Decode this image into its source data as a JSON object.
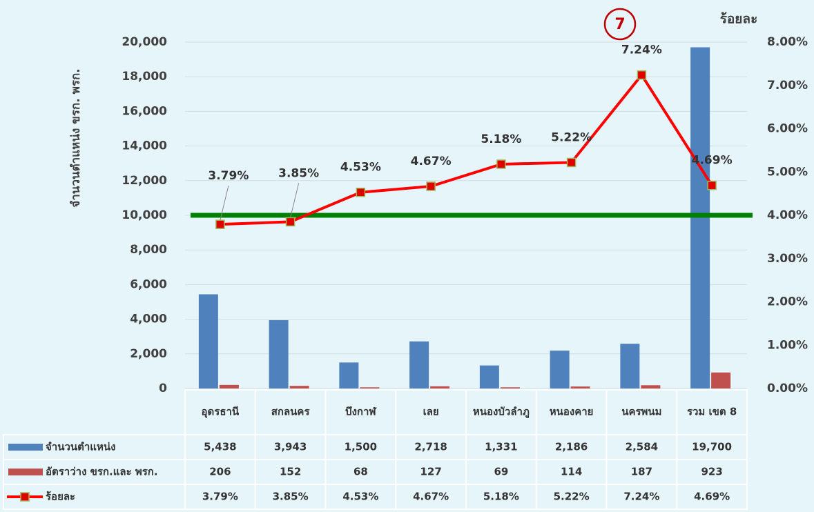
{
  "chart_data": {
    "type": "bar",
    "annotation": "7",
    "y_label": "จำนวนตำแหน่ง ขรก. พรก.",
    "y2_label": "ร้อยละ",
    "categories": [
      "อุดรธานี",
      "สกลนคร",
      "บึงกาฬ",
      "เลย",
      "หนองบัวลำภู",
      "หนองคาย",
      "นครพนม",
      "รวม เขต 8"
    ],
    "series": [
      {
        "name": "จำนวนตำแหน่ง",
        "type": "bar",
        "color": "#4f81bd",
        "values": [
          5438,
          3943,
          1500,
          2718,
          1331,
          2186,
          2584,
          19700
        ],
        "value_labels": [
          "5,438",
          "3,943",
          "1,500",
          "2,718",
          "1,331",
          "2,186",
          "2,584",
          "19,700"
        ]
      },
      {
        "name": "อัตราว่าง ขรก.และ พรก.",
        "type": "bar",
        "color": "#c0504d",
        "values": [
          206,
          152,
          68,
          127,
          69,
          114,
          187,
          923
        ],
        "value_labels": [
          "206",
          "152",
          "68",
          "127",
          "69",
          "114",
          "187",
          "923"
        ]
      },
      {
        "name": "ร้อยละ",
        "type": "line",
        "axis": "y2",
        "color": "#ff0000",
        "values": [
          3.79,
          3.85,
          4.53,
          4.67,
          5.18,
          5.22,
          7.24,
          4.69
        ],
        "value_labels": [
          "3.79%",
          "3.85%",
          "4.53%",
          "4.67%",
          "5.18%",
          "5.22%",
          "7.24%",
          "4.69%"
        ]
      }
    ],
    "reference_line": {
      "value": 4,
      "axis": "y2",
      "color": "#008000"
    },
    "ylim": [
      0,
      20000
    ],
    "yticks": [
      0,
      {
        "value": 2000,
        "label": "2,000"
      },
      {
        "value": 4000,
        "label": "4,000"
      },
      {
        "value": 6000,
        "label": "6,000"
      },
      {
        "value": 8000,
        "label": "8,000"
      },
      {
        "value": 10000,
        "label": "10,000"
      },
      {
        "value": 12000,
        "label": "12,000"
      },
      {
        "value": 14000,
        "label": "14,000"
      },
      {
        "value": 16000,
        "label": "16,000"
      },
      {
        "value": 18000,
        "label": "18,000"
      },
      {
        "value": 20000,
        "label": "20,000"
      }
    ],
    "y2lim": [
      0,
      8
    ],
    "y2ticks": [
      {
        "value": 0,
        "label": "0.00%"
      },
      {
        "value": 1,
        "label": "1.00%"
      },
      {
        "value": 2,
        "label": "2.00%"
      },
      {
        "value": 3,
        "label": "3.00%"
      },
      {
        "value": 4,
        "label": "4.00%"
      },
      {
        "value": 5,
        "label": "5.00%"
      },
      {
        "value": 6,
        "label": "6.00%"
      },
      {
        "value": 7,
        "label": "7.00%"
      },
      {
        "value": 8,
        "label": "8.00%"
      }
    ],
    "grid": true
  }
}
